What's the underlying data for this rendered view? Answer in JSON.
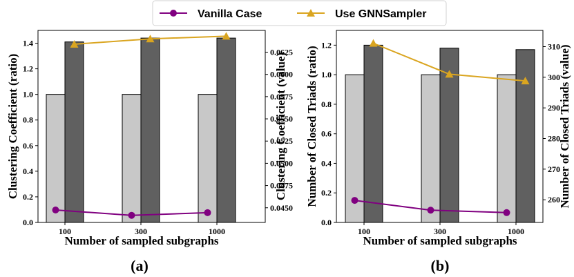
{
  "legend": {
    "items": [
      {
        "label": "Vanilla Case",
        "color": "#800080",
        "marker": "circle"
      },
      {
        "label": "Use GNNSampler",
        "color": "#DAA520",
        "marker": "triangle"
      }
    ]
  },
  "chart_data": [
    {
      "type": "bar",
      "panel_label": "(a)",
      "categories": [
        "100",
        "300",
        "1000"
      ],
      "xlabel": "Number of sampled subgraphs",
      "ylabel": "Clustering Coefficient (ratio)",
      "y2label": "Clustering Coefficient (value)",
      "ylim": [
        0,
        1.5
      ],
      "yticks": [
        0.0,
        0.2,
        0.4,
        0.6,
        0.8,
        1.0,
        1.2,
        1.4
      ],
      "y2lim": [
        0.04335,
        0.06495
      ],
      "y2ticks": [
        0.045,
        0.0475,
        0.05,
        0.0525,
        0.055,
        0.0575,
        0.06,
        0.0625
      ],
      "bars": [
        {
          "name": "Vanilla Case",
          "values": [
            1.0,
            1.0,
            1.0
          ],
          "color": "#c8c8c8"
        },
        {
          "name": "Use GNNSampler",
          "values": [
            1.41,
            1.44,
            1.44
          ],
          "color": "#606060"
        }
      ],
      "lines": [
        {
          "name": "Vanilla Case",
          "axis": "right",
          "values": [
            0.04475,
            0.04415,
            0.04445
          ],
          "color": "#800080",
          "marker": "circle"
        },
        {
          "name": "Use GNNSampler",
          "axis": "right",
          "values": [
            0.0634,
            0.064,
            0.0643
          ],
          "color": "#DAA520",
          "marker": "triangle"
        }
      ]
    },
    {
      "type": "bar",
      "panel_label": "(b)",
      "categories": [
        "100",
        "300",
        "1000"
      ],
      "xlabel": "Number of sampled subgraphs",
      "ylabel": "Number of Closed Triads (ratio)",
      "y2label": "Number of Closed Triads (value)",
      "ylim": [
        0,
        1.3
      ],
      "yticks": [
        0.0,
        0.2,
        0.4,
        0.6,
        0.8,
        1.0,
        1.2
      ],
      "y2lim": [
        252.6,
        315.3
      ],
      "y2ticks": [
        260,
        270,
        280,
        290,
        300,
        310
      ],
      "bars": [
        {
          "name": "Vanilla Case",
          "values": [
            1.0,
            1.0,
            1.0
          ],
          "color": "#c8c8c8"
        },
        {
          "name": "Use GNNSampler",
          "values": [
            1.2,
            1.18,
            1.17
          ],
          "color": "#606060"
        }
      ],
      "lines": [
        {
          "name": "Vanilla Case",
          "axis": "right",
          "values": [
            259.8,
            256.6,
            255.8
          ],
          "color": "#800080",
          "marker": "circle"
        },
        {
          "name": "Use GNNSampler",
          "axis": "right",
          "values": [
            311.1,
            301.0,
            298.8
          ],
          "color": "#DAA520",
          "marker": "triangle"
        }
      ]
    }
  ]
}
